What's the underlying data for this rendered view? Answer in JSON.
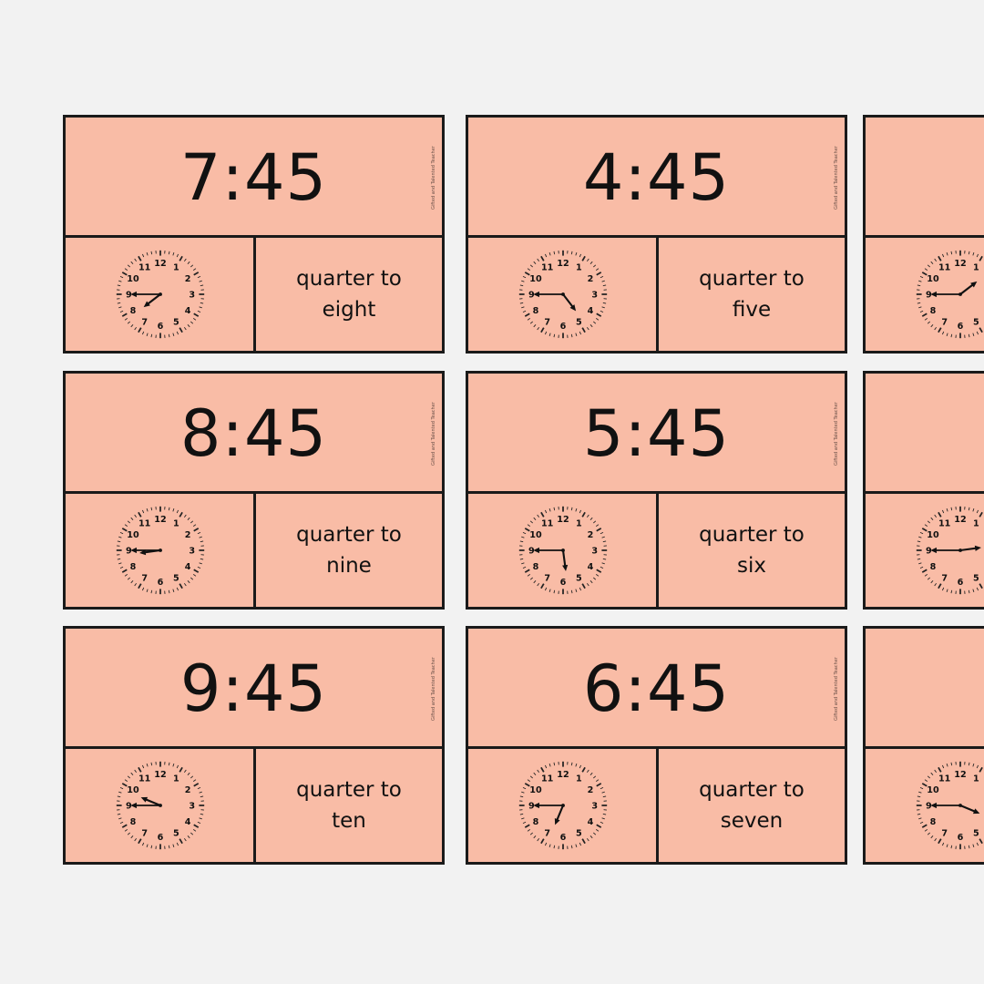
{
  "credit": "Gifted and Talented Teacher",
  "cards": [
    {
      "time": "7:45",
      "line1": "quarter to",
      "line2": "eight",
      "hour_hand_angle": 232.5,
      "minute_hand_angle": 270
    },
    {
      "time": "4:45",
      "line1": "quarter to",
      "line2": "five",
      "hour_hand_angle": 142.5,
      "minute_hand_angle": 270
    },
    {
      "time": "",
      "line1": "",
      "line2": "",
      "hour_hand_angle": 52.5,
      "minute_hand_angle": 270
    },
    {
      "time": "8:45",
      "line1": "quarter to",
      "line2": "nine",
      "hour_hand_angle": 262.5,
      "minute_hand_angle": 270
    },
    {
      "time": "5:45",
      "line1": "quarter to",
      "line2": "six",
      "hour_hand_angle": 172.5,
      "minute_hand_angle": 270
    },
    {
      "time": "",
      "line1": "",
      "line2": "",
      "hour_hand_angle": 82.5,
      "minute_hand_angle": 270
    },
    {
      "time": "9:45",
      "line1": "quarter to",
      "line2": "ten",
      "hour_hand_angle": 292.5,
      "minute_hand_angle": 270
    },
    {
      "time": "6:45",
      "line1": "quarter to",
      "line2": "seven",
      "hour_hand_angle": 202.5,
      "minute_hand_angle": 270
    },
    {
      "time": "",
      "line1": "",
      "line2": "",
      "hour_hand_angle": 112.5,
      "minute_hand_angle": 270
    }
  ],
  "clock_numbers": [
    "12",
    "1",
    "2",
    "3",
    "4",
    "5",
    "6",
    "7",
    "8",
    "9",
    "10",
    "11"
  ],
  "colors": {
    "card_fill": "#f9bca6",
    "border": "#1a1a1a",
    "background": "#f2f2f2"
  }
}
